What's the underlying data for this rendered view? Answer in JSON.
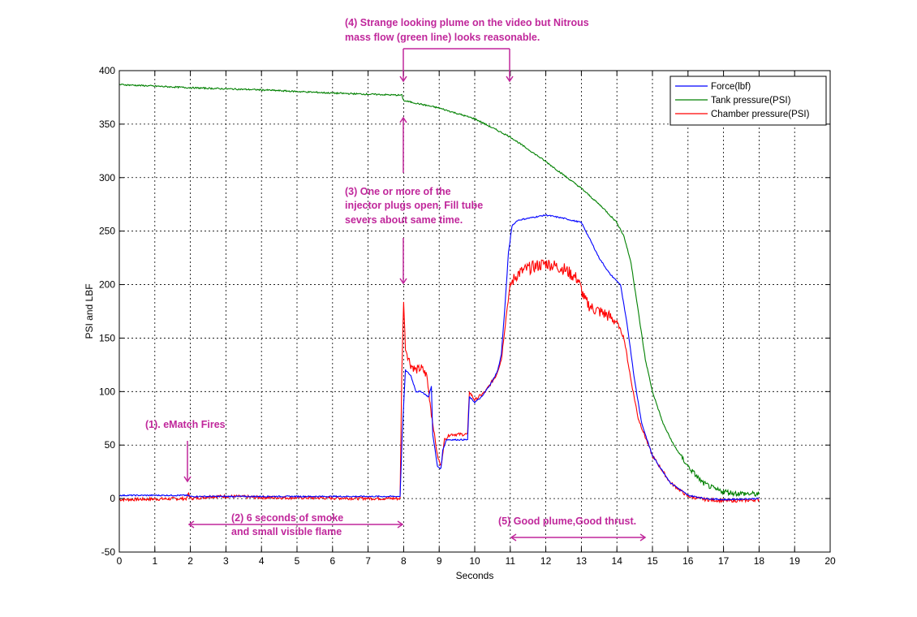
{
  "chart_data": {
    "type": "line",
    "xlabel": "Seconds",
    "ylabel": "PSI and LBF",
    "xlim": [
      0,
      20
    ],
    "ylim": [
      -50,
      400
    ],
    "xticks": [
      0,
      1,
      2,
      3,
      4,
      5,
      6,
      7,
      8,
      9,
      10,
      11,
      12,
      13,
      14,
      15,
      16,
      17,
      18,
      19,
      20
    ],
    "yticks": [
      -50,
      0,
      50,
      100,
      150,
      200,
      250,
      300,
      350,
      400
    ],
    "grid": true,
    "legend_position": "top-right",
    "colors": {
      "force": "#0000ff",
      "tank": "#008000",
      "chamber": "#ff0000",
      "annotation": "#c0279b"
    },
    "series": [
      {
        "name": "Force(lbf)",
        "color": "#0000ff",
        "noise": 0.6,
        "points": [
          [
            0,
            3
          ],
          [
            1.9,
            3
          ],
          [
            2.0,
            2
          ],
          [
            7.9,
            2
          ],
          [
            7.96,
            60
          ],
          [
            8.05,
            120
          ],
          [
            8.2,
            115
          ],
          [
            8.35,
            100
          ],
          [
            8.5,
            100
          ],
          [
            8.7,
            95
          ],
          [
            8.78,
            105
          ],
          [
            8.82,
            60
          ],
          [
            8.95,
            30
          ],
          [
            9.05,
            28
          ],
          [
            9.1,
            45
          ],
          [
            9.2,
            55
          ],
          [
            9.8,
            55
          ],
          [
            9.85,
            95
          ],
          [
            10.0,
            90
          ],
          [
            10.2,
            95
          ],
          [
            10.5,
            110
          ],
          [
            10.65,
            120
          ],
          [
            10.75,
            135
          ],
          [
            10.85,
            180
          ],
          [
            10.95,
            230
          ],
          [
            11.05,
            255
          ],
          [
            11.2,
            260
          ],
          [
            11.5,
            262
          ],
          [
            12.0,
            265
          ],
          [
            12.5,
            262
          ],
          [
            13.0,
            258
          ],
          [
            13.2,
            245
          ],
          [
            13.5,
            225
          ],
          [
            13.8,
            210
          ],
          [
            14.1,
            200
          ],
          [
            14.3,
            160
          ],
          [
            14.5,
            110
          ],
          [
            14.7,
            70
          ],
          [
            15.0,
            40
          ],
          [
            15.5,
            15
          ],
          [
            16.0,
            3
          ],
          [
            16.5,
            0
          ],
          [
            17.0,
            -1
          ],
          [
            18.0,
            0
          ]
        ]
      },
      {
        "name": "Tank pressure(PSI)",
        "color": "#008000",
        "noise": 0.7,
        "points": [
          [
            0,
            387
          ],
          [
            2,
            384
          ],
          [
            4,
            382
          ],
          [
            6,
            379
          ],
          [
            7.95,
            377
          ],
          [
            8.0,
            372
          ],
          [
            9,
            365
          ],
          [
            10,
            355
          ],
          [
            11,
            338
          ],
          [
            12,
            315
          ],
          [
            13,
            290
          ],
          [
            13.6,
            272
          ],
          [
            14.0,
            258
          ],
          [
            14.2,
            245
          ],
          [
            14.4,
            220
          ],
          [
            14.6,
            175
          ],
          [
            14.8,
            130
          ],
          [
            15.0,
            100
          ],
          [
            15.3,
            70
          ],
          [
            15.6,
            50
          ],
          [
            16.0,
            30
          ],
          [
            16.4,
            15
          ],
          [
            16.8,
            8
          ],
          [
            17.3,
            5
          ],
          [
            18.0,
            4
          ]
        ]
      },
      {
        "name": "Chamber pressure(PSI)",
        "color": "#ff0000",
        "noise": 1.5,
        "points": [
          [
            0,
            -1
          ],
          [
            1.9,
            0
          ],
          [
            1.95,
            5
          ],
          [
            2.0,
            0
          ],
          [
            2.6,
            2
          ],
          [
            3.2,
            2
          ],
          [
            4,
            1
          ],
          [
            7.9,
            0
          ],
          [
            7.95,
            120
          ],
          [
            8.0,
            185
          ],
          [
            8.05,
            140
          ],
          [
            8.2,
            125
          ],
          [
            8.35,
            120
          ],
          [
            8.5,
            122
          ],
          [
            8.65,
            115
          ],
          [
            8.8,
            75
          ],
          [
            8.95,
            40
          ],
          [
            9.05,
            30
          ],
          [
            9.15,
            55
          ],
          [
            9.3,
            60
          ],
          [
            9.8,
            60
          ],
          [
            9.85,
            100
          ],
          [
            10.0,
            92
          ],
          [
            10.3,
            100
          ],
          [
            10.6,
            115
          ],
          [
            10.75,
            130
          ],
          [
            10.9,
            175
          ],
          [
            11.0,
            200
          ],
          [
            11.2,
            210
          ],
          [
            11.5,
            215
          ],
          [
            12.0,
            220
          ],
          [
            12.5,
            215
          ],
          [
            12.9,
            205
          ],
          [
            13.1,
            185
          ],
          [
            13.3,
            178
          ],
          [
            13.7,
            172
          ],
          [
            14.0,
            165
          ],
          [
            14.2,
            150
          ],
          [
            14.4,
            110
          ],
          [
            14.6,
            75
          ],
          [
            15.0,
            40
          ],
          [
            15.5,
            15
          ],
          [
            16.0,
            2
          ],
          [
            16.5,
            -1
          ],
          [
            17.0,
            -2
          ],
          [
            17.5,
            -2
          ],
          [
            18.0,
            -1
          ]
        ]
      }
    ],
    "annotations": [
      {
        "lines": [
          "(1). eMatch Fires"
        ]
      },
      {
        "lines": [
          "(2) 6 seconds of smoke",
          "and small visible flame"
        ]
      },
      {
        "lines": [
          "(3) One or more of the",
          "injector plugs open. Fill tube",
          "severs about same time."
        ]
      },
      {
        "lines": [
          "(4) Strange looking plume on the video but Nitrous",
          "mass flow (green line) looks reasonable."
        ]
      },
      {
        "lines": [
          "(5) Good plume,Good thrust."
        ]
      }
    ]
  }
}
